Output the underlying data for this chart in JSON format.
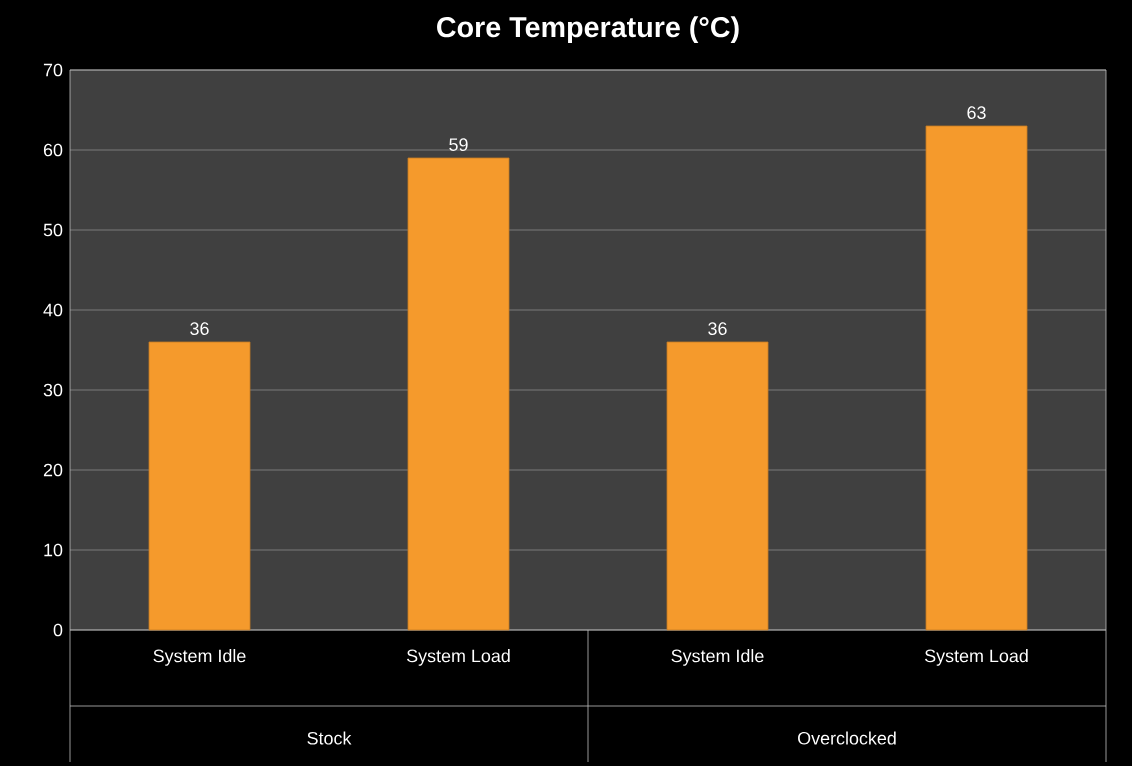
{
  "chart_data": {
    "type": "bar",
    "title": "Core Temperature  (°C)",
    "categories": [
      "System Idle",
      "System Load",
      "System Idle",
      "System Load"
    ],
    "values": [
      36,
      59,
      36,
      63
    ],
    "color": "#f59a2c",
    "ylim": [
      0,
      70
    ],
    "yticks": [
      0,
      10,
      20,
      30,
      40,
      50,
      60,
      70
    ],
    "grid": "y",
    "data_labels": true,
    "annotations": [
      "Stock",
      "Overclocked"
    ]
  }
}
